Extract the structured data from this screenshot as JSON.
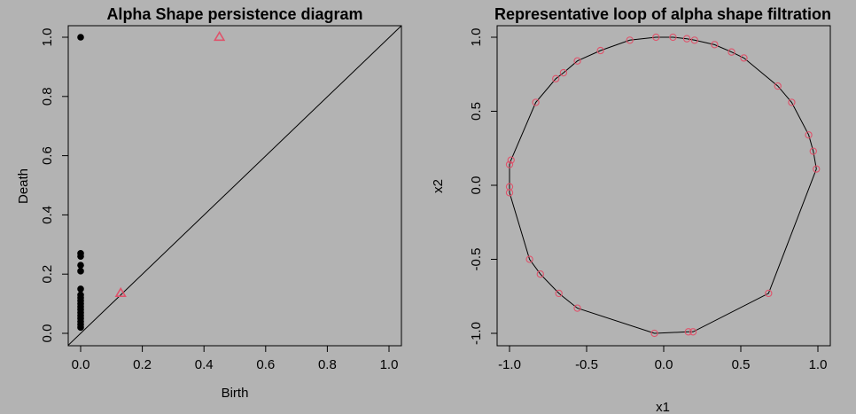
{
  "chart_data": [
    {
      "type": "scatter",
      "title": "Alpha Shape persistence diagram",
      "xlabel": "Birth",
      "ylabel": "Death",
      "xlim": [
        0,
        1
      ],
      "ylim": [
        0,
        1
      ],
      "xticks": [
        "0.0",
        "0.2",
        "0.4",
        "0.6",
        "0.8",
        "1.0"
      ],
      "yticks": [
        "0.0",
        "0.2",
        "0.4",
        "0.6",
        "0.8",
        "1.0"
      ],
      "diagonal": true,
      "series": [
        {
          "marker": "filled-circle",
          "color": "#000000",
          "points": [
            [
              0,
              1.0
            ],
            [
              0,
              0.27
            ],
            [
              0,
              0.26
            ],
            [
              0,
              0.23
            ],
            [
              0,
              0.21
            ],
            [
              0,
              0.15
            ],
            [
              0,
              0.13
            ],
            [
              0,
              0.12
            ],
            [
              0,
              0.11
            ],
            [
              0,
              0.1
            ],
            [
              0,
              0.09
            ],
            [
              0,
              0.08
            ],
            [
              0,
              0.07
            ],
            [
              0,
              0.06
            ],
            [
              0,
              0.05
            ],
            [
              0,
              0.04
            ],
            [
              0,
              0.03
            ],
            [
              0,
              0.02
            ]
          ]
        },
        {
          "marker": "open-triangle",
          "color": "#df536b",
          "points": [
            [
              0.45,
              1.0
            ],
            [
              0.13,
              0.135
            ]
          ]
        }
      ]
    },
    {
      "type": "scatter",
      "title": "Representative loop of alpha shape filtration",
      "xlabel": "x1",
      "ylabel": "x2",
      "xlim": [
        -1,
        1
      ],
      "ylim": [
        -1,
        1
      ],
      "xticks": [
        "-1.0",
        "-0.5",
        "0.0",
        "0.5",
        "1.0"
      ],
      "yticks": [
        "-1.0",
        "-0.5",
        "0.0",
        "0.5",
        "1.0"
      ],
      "points_color": "#df536b",
      "points": [
        [
          -0.05,
          1.0
        ],
        [
          0.06,
          1.0
        ],
        [
          0.15,
          0.99
        ],
        [
          0.2,
          0.98
        ],
        [
          -0.22,
          0.98
        ],
        [
          0.33,
          0.95
        ],
        [
          -0.41,
          0.91
        ],
        [
          0.44,
          0.9
        ],
        [
          0.52,
          0.86
        ],
        [
          -0.56,
          0.84
        ],
        [
          -0.65,
          0.76
        ],
        [
          -0.7,
          0.72
        ],
        [
          0.74,
          0.67
        ],
        [
          -0.83,
          0.56
        ],
        [
          0.83,
          0.56
        ],
        [
          0.94,
          0.34
        ],
        [
          0.97,
          0.23
        ],
        [
          -0.99,
          0.17
        ],
        [
          -1.0,
          0.14
        ],
        [
          0.99,
          0.11
        ],
        [
          -1.0,
          -0.01
        ],
        [
          -1.0,
          -0.05
        ],
        [
          -0.87,
          -0.5
        ],
        [
          -0.8,
          -0.6
        ],
        [
          -0.68,
          -0.73
        ],
        [
          0.68,
          -0.73
        ],
        [
          -0.56,
          -0.83
        ],
        [
          -0.06,
          -1.0
        ],
        [
          0.16,
          -0.99
        ],
        [
          0.19,
          -0.99
        ]
      ],
      "loop": [
        [
          -0.05,
          1.0
        ],
        [
          0.06,
          1.0
        ],
        [
          0.15,
          0.99
        ],
        [
          0.2,
          0.98
        ],
        [
          0.33,
          0.95
        ],
        [
          0.44,
          0.9
        ],
        [
          0.52,
          0.86
        ],
        [
          0.74,
          0.67
        ],
        [
          0.83,
          0.56
        ],
        [
          0.94,
          0.34
        ],
        [
          0.97,
          0.23
        ],
        [
          0.99,
          0.11
        ],
        [
          0.68,
          -0.73
        ],
        [
          0.19,
          -0.99
        ],
        [
          0.16,
          -0.99
        ],
        [
          -0.06,
          -1.0
        ],
        [
          -0.56,
          -0.83
        ],
        [
          -0.68,
          -0.73
        ],
        [
          -0.8,
          -0.6
        ],
        [
          -0.87,
          -0.5
        ],
        [
          -1.0,
          -0.05
        ],
        [
          -1.0,
          -0.01
        ],
        [
          -1.0,
          0.14
        ],
        [
          -0.99,
          0.17
        ],
        [
          -0.83,
          0.56
        ],
        [
          -0.7,
          0.72
        ],
        [
          -0.65,
          0.76
        ],
        [
          -0.56,
          0.84
        ],
        [
          -0.41,
          0.91
        ],
        [
          -0.22,
          0.98
        ],
        [
          -0.05,
          1.0
        ]
      ]
    }
  ]
}
